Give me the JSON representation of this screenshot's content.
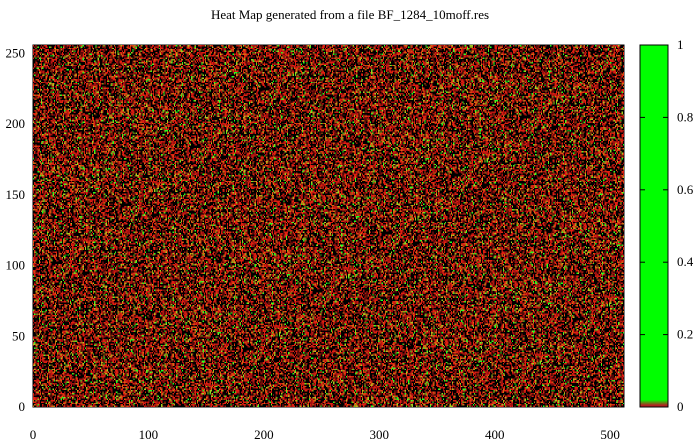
{
  "chart_data": {
    "type": "heatmap",
    "title": "Heat Map generated from a file BF_1284_10moff.res",
    "xlim": [
      0,
      512
    ],
    "ylim": [
      0,
      256
    ],
    "x_ticks": [
      0,
      100,
      200,
      300,
      400,
      500
    ],
    "y_ticks": [
      0,
      50,
      100,
      150,
      200,
      250
    ],
    "colorbar": {
      "range": [
        0,
        1
      ],
      "ticks": [
        0,
        0.2,
        0.4,
        0.6,
        0.8,
        1
      ],
      "low_color": "#b22222",
      "high_color": "#00ff00"
    },
    "grid_size": [
      512,
      256
    ],
    "value_distribution": [
      {
        "label": "zero",
        "color": "#000000",
        "fraction": 0.45
      },
      {
        "label": "dark-red",
        "color": "#a01010",
        "fraction": 0.2
      },
      {
        "label": "red",
        "color": "#e02010",
        "fraction": 0.2
      },
      {
        "label": "orange",
        "color": "#d07010",
        "fraction": 0.08
      },
      {
        "label": "yellow-green",
        "color": "#a0d020",
        "fraction": 0.04
      },
      {
        "label": "green",
        "color": "#20ff20",
        "fraction": 0.03
      }
    ]
  }
}
